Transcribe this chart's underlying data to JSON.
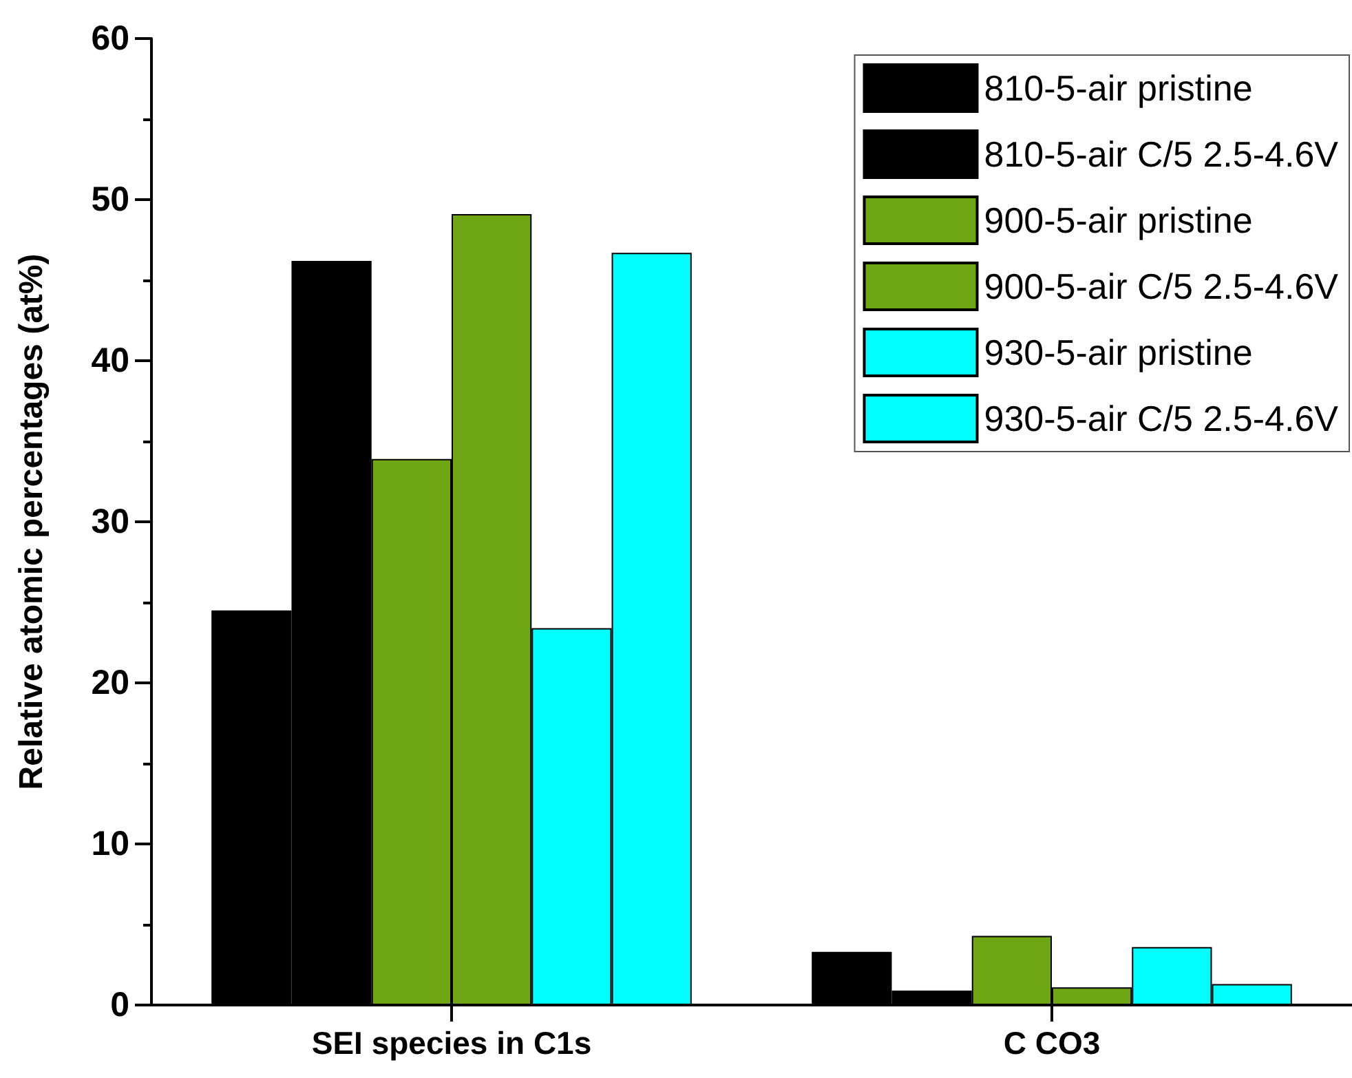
{
  "chart_data": {
    "type": "bar",
    "ylabel": "Relative atomic percentages (at%)",
    "categories": [
      "SEI species in C1s",
      "C CO3"
    ],
    "series": [
      {
        "name": "810-5-air pristine",
        "color": "#000000",
        "values": [
          24.5,
          3.3
        ]
      },
      {
        "name": "810-5-air C/5 2.5-4.6V",
        "color": "#000000",
        "values": [
          46.2,
          0.9
        ]
      },
      {
        "name": "900-5-air pristine",
        "color": "#6ea614",
        "values": [
          33.9,
          4.3
        ]
      },
      {
        "name": "900-5-air C/5 2.5-4.6V",
        "color": "#6ea614",
        "values": [
          49.1,
          1.1
        ]
      },
      {
        "name": "930-5-air pristine",
        "color": "#00ffff",
        "values": [
          23.4,
          3.6
        ]
      },
      {
        "name": "930-5-air C/5 2.5-4.6V",
        "color": "#00ffff",
        "values": [
          46.7,
          1.3
        ]
      }
    ],
    "ylim": [
      0,
      60
    ],
    "yticks": [
      0,
      10,
      20,
      30,
      40,
      50,
      60
    ],
    "grid": false,
    "legend": "top right"
  }
}
